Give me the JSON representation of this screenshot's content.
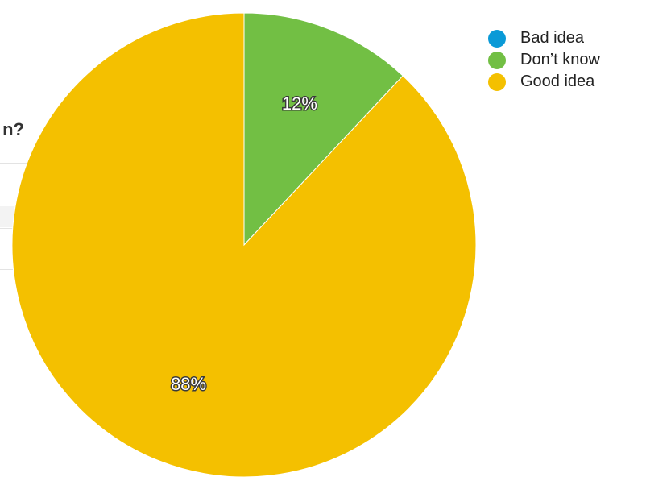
{
  "background": {
    "question_fragment": "n?"
  },
  "chart_data": {
    "type": "pie",
    "categories": [
      "Bad idea",
      "Don’t know",
      "Good idea"
    ],
    "values": [
      0,
      12,
      88
    ],
    "labels": [
      "",
      "12%",
      "88%"
    ],
    "colors": [
      "#0a9ad7",
      "#72bf44",
      "#f4c000"
    ],
    "legend_position": "top-right"
  }
}
